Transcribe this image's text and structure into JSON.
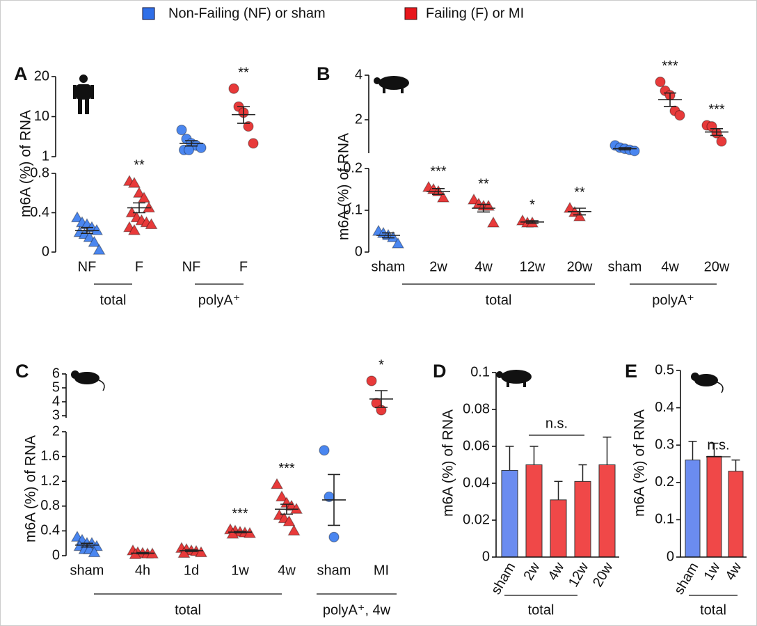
{
  "legend": [
    {
      "name": "Non-Failing (NF) or sham",
      "color": "#2f6fe8"
    },
    {
      "name": "Failing (F) or MI",
      "color": "#e8161b"
    }
  ],
  "chart_data": [
    {
      "type": "dot",
      "label": "A",
      "ylabel": "m6A (%) of RNA",
      "ylim": [
        0,
        0.8
      ],
      "yticks": [
        0,
        0.4,
        0.8
      ],
      "ylim_upper": [
        1,
        20
      ],
      "yticks_upper": [
        1,
        10,
        20
      ],
      "group_labels": [
        "total",
        "polyA⁺"
      ],
      "groups": [
        {
          "category": "NF",
          "color": "#4a86f0",
          "marker": "triangle",
          "values": [
            0.35,
            0.3,
            0.28,
            0.25,
            0.22,
            0.2,
            0.18,
            0.15,
            0.1,
            0.02
          ],
          "mean": 0.22,
          "sem": 0.03
        },
        {
          "category": "F",
          "color": "#e83a3a",
          "marker": "triangle",
          "values": [
            0.72,
            0.7,
            0.6,
            0.55,
            0.45,
            0.4,
            0.35,
            0.32,
            0.3,
            0.28,
            0.25,
            0.22
          ],
          "mean": 0.45,
          "sem": 0.05,
          "annotation": "**"
        },
        {
          "category": "NF",
          "color": "#4a86f0",
          "marker": "circle",
          "values": [
            7,
            5,
            4,
            3.5,
            3,
            2.5,
            2.5
          ],
          "mean": 4,
          "sem": 0.6
        },
        {
          "category": "F",
          "color": "#e83a3a",
          "marker": "circle",
          "values": [
            17,
            12.5,
            11,
            7.8,
            4
          ],
          "mean": 10.5,
          "sem": 2,
          "annotation": "**"
        }
      ]
    },
    {
      "type": "dot",
      "label": "B",
      "ylabel": "m6A (%) of RNA",
      "ylim": [
        0,
        0.2
      ],
      "yticks": [
        0,
        0.1,
        0.2
      ],
      "ylim_upper": [
        0.5,
        4
      ],
      "yticks_upper": [
        2,
        4
      ],
      "group_labels": [
        "total",
        "polyA⁺"
      ],
      "groups": [
        {
          "category": "sham",
          "color": "#4a86f0",
          "marker": "triangle",
          "values": [
            0.05,
            0.045,
            0.04,
            0.035,
            0.02
          ],
          "mean": 0.04,
          "sem": 0.006
        },
        {
          "category": "2w",
          "color": "#e83a3a",
          "marker": "triangle",
          "values": [
            0.155,
            0.15,
            0.145,
            0.13
          ],
          "mean": 0.145,
          "sem": 0.007,
          "annotation": "***"
        },
        {
          "category": "4w",
          "color": "#e83a3a",
          "marker": "triangle",
          "values": [
            0.125,
            0.115,
            0.11,
            0.11,
            0.07
          ],
          "mean": 0.105,
          "sem": 0.009,
          "annotation": "**"
        },
        {
          "category": "12w",
          "color": "#e83a3a",
          "marker": "triangle",
          "values": [
            0.075,
            0.07,
            0.07
          ],
          "mean": 0.072,
          "sem": 0.003,
          "annotation": "*"
        },
        {
          "category": "20w",
          "color": "#e83a3a",
          "marker": "triangle",
          "values": [
            0.105,
            0.095,
            0.085
          ],
          "mean": 0.097,
          "sem": 0.008,
          "annotation": "**"
        },
        {
          "category": "sham",
          "color": "#4a86f0",
          "marker": "circle",
          "values": [
            0.85,
            0.75,
            0.7,
            0.65,
            0.6
          ],
          "mean": 0.7,
          "sem": 0.05
        },
        {
          "category": "4w",
          "color": "#e83a3a",
          "marker": "circle",
          "values": [
            3.7,
            3.3,
            3.1,
            2.4,
            2.2
          ],
          "mean": 2.9,
          "sem": 0.3,
          "annotation": "***"
        },
        {
          "category": "20w",
          "color": "#e83a3a",
          "marker": "circle",
          "values": [
            1.75,
            1.7,
            1.4,
            1.03
          ],
          "mean": 1.45,
          "sem": 0.15,
          "annotation": "***"
        }
      ]
    },
    {
      "type": "dot",
      "label": "C",
      "ylabel": "m6A (%) of RNA",
      "ylim": [
        0,
        2
      ],
      "yticks": [
        0,
        0.4,
        0.8,
        1.2,
        1.6,
        2
      ],
      "ylim_upper": [
        2.85,
        6
      ],
      "yticks_upper": [
        3,
        4,
        5,
        6
      ],
      "group_labels": [
        "total",
        "polyA⁺, 4w"
      ],
      "groups": [
        {
          "category": "sham",
          "color": "#4a86f0",
          "marker": "triangle",
          "values": [
            0.3,
            0.25,
            0.2,
            0.2,
            0.15,
            0.15,
            0.1,
            0.1,
            0.05
          ],
          "mean": 0.17,
          "sem": 0.03
        },
        {
          "category": "4h",
          "color": "#e83a3a",
          "marker": "triangle",
          "values": [
            0.08,
            0.05,
            0.04,
            0.03,
            0.03,
            0.02
          ],
          "mean": 0.04,
          "sem": 0.01
        },
        {
          "category": "1d",
          "color": "#e83a3a",
          "marker": "triangle",
          "values": [
            0.12,
            0.1,
            0.08,
            0.07,
            0.05,
            0.04
          ],
          "mean": 0.08,
          "sem": 0.012
        },
        {
          "category": "1w",
          "color": "#e83a3a",
          "marker": "triangle",
          "values": [
            0.42,
            0.4,
            0.38,
            0.37,
            0.36,
            0.35
          ],
          "mean": 0.38,
          "sem": 0.01,
          "annotation": "***"
        },
        {
          "category": "4w",
          "color": "#e83a3a",
          "marker": "triangle",
          "values": [
            1.15,
            0.95,
            0.85,
            0.8,
            0.75,
            0.65,
            0.6,
            0.55,
            0.4
          ],
          "mean": 0.75,
          "sem": 0.08,
          "annotation": "***"
        },
        {
          "category": "sham",
          "color": "#4a86f0",
          "marker": "circle",
          "values": [
            1.7,
            0.95,
            0.3
          ],
          "mean": 0.9,
          "sem": 0.41
        },
        {
          "category": "MI",
          "color": "#e83a3a",
          "marker": "circle",
          "values": [
            5.5,
            3.9,
            3.4
          ],
          "mean": 4.2,
          "sem": 0.6,
          "annotation": "*"
        }
      ]
    },
    {
      "type": "bar",
      "label": "D",
      "ylabel": "m6A (%) of RNA",
      "ylim": [
        0,
        0.1
      ],
      "yticks": [
        0,
        0.02,
        0.04,
        0.06,
        0.08,
        0.1
      ],
      "categories": [
        "sham",
        "2w",
        "4w",
        "12w",
        "20w"
      ],
      "values": [
        0.047,
        0.05,
        0.031,
        0.041,
        0.05
      ],
      "errors": [
        0.013,
        0.01,
        0.01,
        0.009,
        0.015
      ],
      "colors": [
        "#6b8cf0",
        "#f04848",
        "#f04848",
        "#f04848",
        "#f04848"
      ],
      "group_label": "total",
      "annotation": "n.s."
    },
    {
      "type": "bar",
      "label": "E",
      "ylabel": "m6A (%) of RNA",
      "ylim": [
        0,
        0.5
      ],
      "yticks": [
        0,
        0.1,
        0.2,
        0.3,
        0.4,
        0.5
      ],
      "categories": [
        "sham",
        "1w",
        "4w"
      ],
      "values": [
        0.26,
        0.27,
        0.23
      ],
      "errors": [
        0.05,
        0.035,
        0.03
      ],
      "colors": [
        "#6b8cf0",
        "#f04848",
        "#f04848"
      ],
      "group_label": "total",
      "annotation": "n.s."
    }
  ]
}
